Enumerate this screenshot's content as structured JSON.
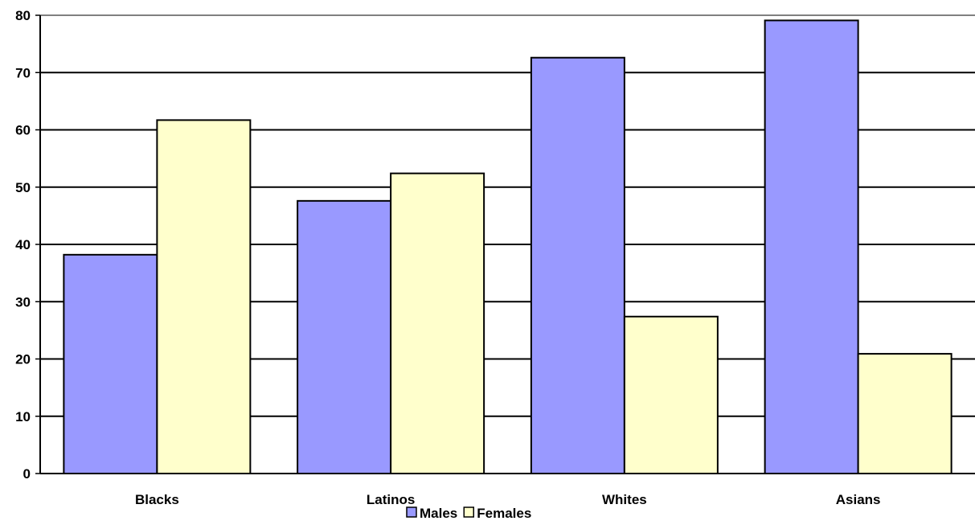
{
  "chart_data": {
    "type": "bar",
    "categories": [
      "Blacks",
      "Latinos",
      "Whites",
      "Asians"
    ],
    "series": [
      {
        "name": "Males",
        "values": [
          38.2,
          47.6,
          72.6,
          79.1
        ],
        "color": "#9999ff"
      },
      {
        "name": "Females",
        "values": [
          61.7,
          52.4,
          27.4,
          20.9
        ],
        "color": "#ffffcc"
      }
    ],
    "y_ticks": [
      "0",
      "10",
      "20",
      "30",
      "40",
      "50",
      "60",
      "70",
      "80"
    ],
    "ylim": [
      0,
      80
    ],
    "grid": true,
    "legend_position": "bottom",
    "title": "",
    "xlabel": "",
    "ylabel": ""
  }
}
